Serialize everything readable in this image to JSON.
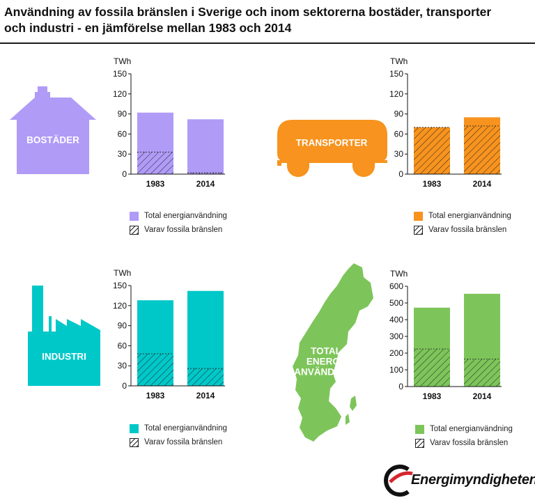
{
  "title": "Användning av fossila bränslen i Sverige och inom sektorerna bostäder, transporter och industri - en jämförelse mellan 1983 och 2014",
  "legend": {
    "total": "Total energianvändning",
    "fossil": "Varav fossila bränslen"
  },
  "icons": {
    "house": "BOSTÄDER",
    "bus": "TRANSPORTER",
    "factory": "INDUSTRI",
    "map_line1": "TOTAL",
    "map_line2": "ENERGI-",
    "map_line3": "ANVÄNDNING"
  },
  "colors": {
    "bostader": "#b09bf7",
    "transporter": "#f7931e",
    "industri": "#00c8c8",
    "total": "#7dc55a",
    "hatch": "#222222",
    "axis": "#111111",
    "logo_red": "#d7252b"
  },
  "logo": {
    "text": "Energimyndigheten"
  },
  "chart_data": [
    {
      "type": "bar",
      "sector": "bostader",
      "ylabel": "TWh",
      "categories": [
        "1983",
        "2014"
      ],
      "yticks": [
        0,
        30,
        60,
        90,
        120,
        150
      ],
      "ylim": [
        0,
        150
      ],
      "series": [
        {
          "name": "Total energianvändning",
          "values": [
            92,
            82
          ]
        },
        {
          "name": "Varav fossila bränslen",
          "values": [
            33,
            2
          ]
        }
      ]
    },
    {
      "type": "bar",
      "sector": "transporter",
      "ylabel": "TWh",
      "categories": [
        "1983",
        "2014"
      ],
      "yticks": [
        0,
        30,
        60,
        90,
        120,
        150
      ],
      "ylim": [
        0,
        150
      ],
      "series": [
        {
          "name": "Total energianvändning",
          "values": [
            70,
            85
          ]
        },
        {
          "name": "Varav fossila bränslen",
          "values": [
            70,
            72
          ]
        }
      ]
    },
    {
      "type": "bar",
      "sector": "industri",
      "ylabel": "TWh",
      "categories": [
        "1983",
        "2014"
      ],
      "yticks": [
        0,
        30,
        60,
        90,
        120,
        150
      ],
      "ylim": [
        0,
        150
      ],
      "series": [
        {
          "name": "Total energianvändning",
          "values": [
            128,
            142
          ]
        },
        {
          "name": "Varav fossila bränslen",
          "values": [
            48,
            26
          ]
        }
      ]
    },
    {
      "type": "bar",
      "sector": "total",
      "ylabel": "TWh",
      "categories": [
        "1983",
        "2014"
      ],
      "yticks": [
        0,
        100,
        200,
        300,
        400,
        500,
        600
      ],
      "ylim": [
        0,
        600
      ],
      "series": [
        {
          "name": "Total energianvändning",
          "values": [
            472,
            555
          ]
        },
        {
          "name": "Varav fossila bränslen",
          "values": [
            225,
            165
          ]
        }
      ]
    }
  ]
}
